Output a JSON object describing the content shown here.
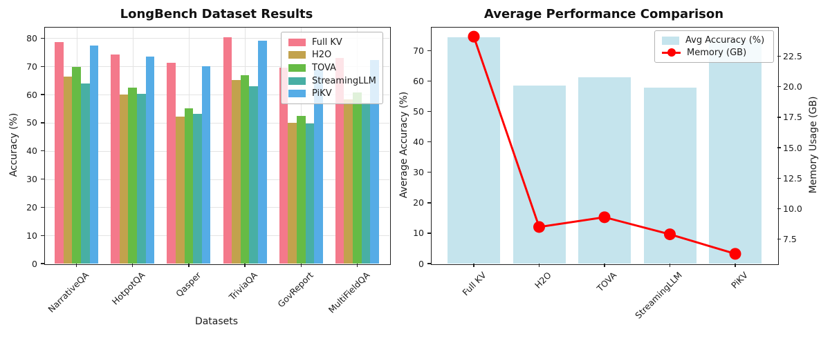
{
  "chart_data": [
    {
      "type": "bar",
      "title": "LongBench Dataset Results",
      "xlabel": "Datasets",
      "ylabel": "Accuracy (%)",
      "categories": [
        "NarrativeQA",
        "HotpotQA",
        "Qasper",
        "TriviaQA",
        "GovReport",
        "MultiFieldQA"
      ],
      "series": [
        {
          "name": "Full KV",
          "color": "#F4798B",
          "values": [
            78.5,
            74.2,
            71.2,
            80.3,
            69.5,
            72.9
          ]
        },
        {
          "name": "H2O",
          "color": "#C2A24D",
          "values": [
            66.3,
            60.0,
            52.2,
            65.2,
            49.9,
            58.2
          ]
        },
        {
          "name": "TOVA",
          "color": "#66BB45",
          "values": [
            69.8,
            62.5,
            55.1,
            66.8,
            52.4,
            60.8
          ]
        },
        {
          "name": "StreamingLLM",
          "color": "#48AFA4",
          "values": [
            64.0,
            60.3,
            53.2,
            63.0,
            49.6,
            57.0
          ]
        },
        {
          "name": "PiKV",
          "color": "#55ACE6",
          "values": [
            77.3,
            73.5,
            70.0,
            79.1,
            68.8,
            72.3
          ]
        }
      ],
      "ylim": [
        0,
        84
      ],
      "yticks": [
        0,
        10,
        20,
        30,
        40,
        50,
        60,
        70,
        80
      ],
      "grid": true,
      "legend_position": "upper right"
    },
    {
      "type": "bar+line",
      "title": "Average Performance Comparison",
      "ylabel_left": "Average Accuracy (%)",
      "ylabel_right": "Memory Usage (GB)",
      "categories": [
        "Full KV",
        "H2O",
        "TOVA",
        "StreamingLLM",
        "PiKV"
      ],
      "bar_series": {
        "name": "Avg Accuracy (%)",
        "color": "#ADD8E6",
        "alpha": 0.7,
        "values": [
          74.4,
          58.6,
          61.2,
          57.9,
          73.5
        ]
      },
      "line_series": {
        "name": "Memory (GB)",
        "color": "#FF0000",
        "values": [
          24.1,
          8.5,
          9.3,
          7.9,
          6.3
        ]
      },
      "ylim_left": [
        0,
        77.8
      ],
      "ylim_right": [
        5.5,
        24.9
      ],
      "yticks_left": [
        0,
        10,
        20,
        30,
        40,
        50,
        60,
        70
      ],
      "yticks_right": [
        "7.5",
        "10.0",
        "12.5",
        "15.0",
        "17.5",
        "20.0",
        "22.5"
      ],
      "grid": false,
      "legend_position": "upper right"
    }
  ]
}
